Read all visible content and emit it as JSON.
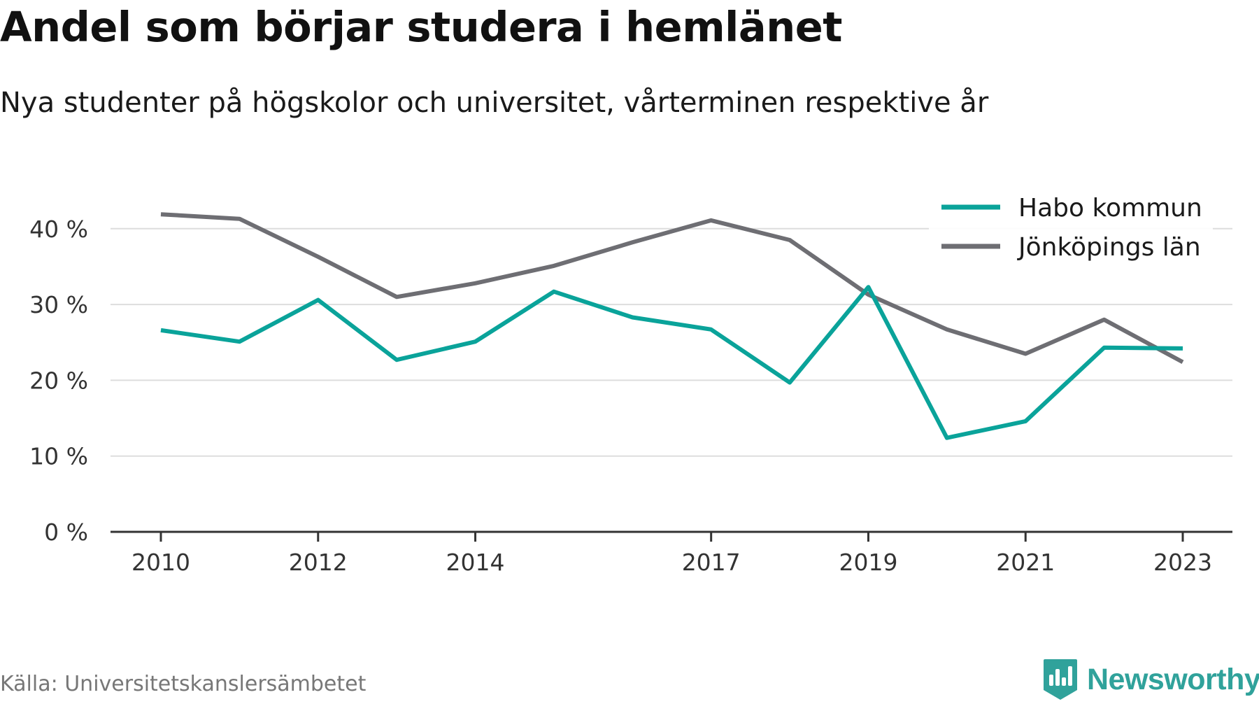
{
  "header": {
    "title": "Andel som börjar studera i hemlänet",
    "subtitle": "Nya studenter på högskolor och universitet, vårterminen respektive år"
  },
  "footer": {
    "source": "Källa: Universitetskanslersämbetet",
    "brand": "Newsworthy"
  },
  "colors": {
    "habo": "#0aa39a",
    "jonkoping": "#6e6e73",
    "brand": "#30a29b",
    "grid": "#dddddd",
    "axis": "#333333"
  },
  "chart_data": {
    "type": "line",
    "title": "Andel som börjar studera i hemlänet",
    "subtitle": "Nya studenter på högskolor och universitet, vårterminen respektive år",
    "x": [
      2010,
      2011,
      2012,
      2013,
      2014,
      2015,
      2016,
      2017,
      2018,
      2019,
      2020,
      2021,
      2022,
      2023
    ],
    "x_tick_values": [
      2010,
      2012,
      2014,
      2017,
      2019,
      2021,
      2023
    ],
    "x_tick_labels": [
      "2010",
      "2012",
      "2014",
      "2017",
      "2019",
      "2021",
      "2023"
    ],
    "y_tick_values": [
      0,
      10,
      20,
      30,
      40
    ],
    "y_tick_labels": [
      "0 %",
      "10 %",
      "20 %",
      "30 %",
      "40 %"
    ],
    "ylim": [
      0,
      45
    ],
    "grid": true,
    "legend_position": "top-right",
    "series": [
      {
        "name": "Habo kommun",
        "color": "#0aa39a",
        "values": [
          26.6,
          25.1,
          30.6,
          22.7,
          25.1,
          31.7,
          28.3,
          26.7,
          19.7,
          32.3,
          12.4,
          14.6,
          24.3,
          24.2
        ]
      },
      {
        "name": "Jönköpings län",
        "color": "#6e6e73",
        "values": [
          41.9,
          41.3,
          36.3,
          31.0,
          32.8,
          35.1,
          38.2,
          41.1,
          38.5,
          31.3,
          26.7,
          23.5,
          28.0,
          22.4
        ]
      }
    ]
  }
}
